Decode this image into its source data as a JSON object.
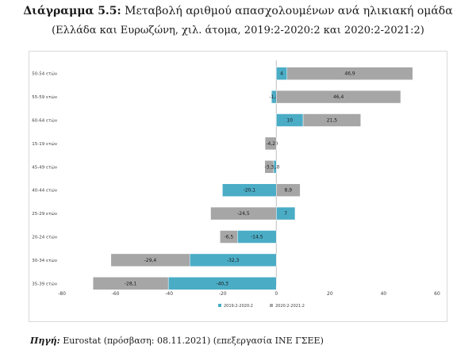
{
  "header": {
    "title_prefix": "Διάγραμμα 5.5:",
    "title_main": "Μεταβολή αριθμού απασχολουμένων ανά ηλικιακή ομάδα",
    "subtitle": "(Ελλάδα και Ευρωζώνη, χιλ. άτομα, 2019:2-2020:2 και 2020:2-2021:2)"
  },
  "source": {
    "label": "Πηγή:",
    "text": "Eurostat (πρόσβαση: 08.11.2021) (επεξεργασία ΙΝΕ ΓΣΕΕ)"
  },
  "chart_data": {
    "type": "bar",
    "orientation": "horizontal",
    "stacked": true,
    "title": "",
    "xlabel": "",
    "ylabel": "",
    "xlim": [
      -80,
      60
    ],
    "xticks": [
      -80,
      -60,
      -40,
      -20,
      0,
      20,
      40,
      60
    ],
    "categories": [
      "50-54 ετών",
      "55-59 ετών",
      "60-64 ετών",
      "15-19 ετών",
      "45-49 ετών",
      "40-44 ετών",
      "25-29 ετών",
      "20-24 ετών",
      "30-34 ετών",
      "35-39 ετών"
    ],
    "series": [
      {
        "name": "2019:2-2020:2",
        "color": "#4bacc6",
        "values": [
          4,
          -1.8,
          10,
          0,
          -1.0,
          -20.1,
          7,
          -14.5,
          -32.3,
          -40.3
        ],
        "labels": [
          "4",
          "-1,8",
          "10",
          "0",
          "-1,0",
          "-20,1",
          "7",
          "-14,5",
          "-32,3",
          "-40,3"
        ]
      },
      {
        "name": "2020:2-2021:2",
        "color": "#a6a6a6",
        "values": [
          46.9,
          46.4,
          21.5,
          -4.2,
          -3.3,
          8.9,
          -24.5,
          -6.5,
          -29.4,
          -28.1
        ],
        "labels": [
          "46,9",
          "46,4",
          "21,5",
          "-4,2",
          "-3,3",
          "8,9",
          "-24,5",
          "-6,5",
          "-29,4",
          "-28,1"
        ]
      }
    ],
    "legend": "bottom",
    "grid": false
  }
}
